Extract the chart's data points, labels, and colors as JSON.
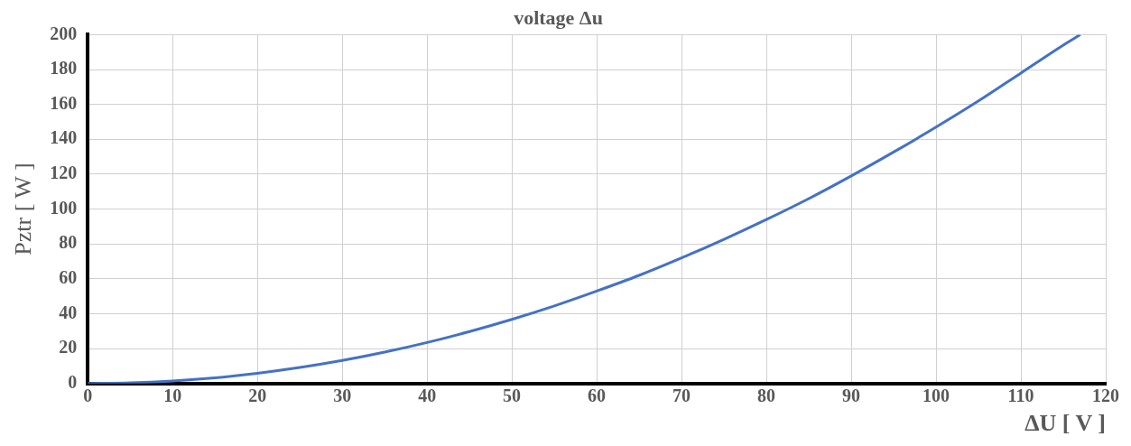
{
  "chart_data": {
    "type": "line",
    "title": "voltage Δu",
    "xlabel": "ΔU [ V ]",
    "ylabel": "Pztr [ W ]",
    "xlim": [
      0,
      120
    ],
    "xticks": [
      0,
      10,
      20,
      30,
      40,
      50,
      60,
      70,
      80,
      90,
      100,
      110,
      120
    ],
    "ylim": [
      0,
      200
    ],
    "yticks": [
      0,
      20,
      40,
      60,
      80,
      100,
      120,
      140,
      160,
      180,
      200
    ],
    "grid": true,
    "legend": false,
    "marker": "none",
    "line_style": "solid",
    "series": [
      {
        "color": "#4472c4",
        "x": [
          0,
          5,
          10,
          15,
          20,
          25,
          30,
          35,
          40,
          45,
          50,
          55,
          60,
          65,
          70,
          75,
          80,
          85,
          90,
          95,
          100,
          105,
          110,
          115,
          117
        ],
        "values": [
          0,
          0.4,
          1.5,
          3.3,
          5.9,
          9.2,
          13.2,
          18,
          23.5,
          29.8,
          36.8,
          44.5,
          53,
          62,
          72,
          82.7,
          94,
          106,
          119,
          132.7,
          147,
          162,
          178,
          194,
          200
        ]
      }
    ]
  }
}
